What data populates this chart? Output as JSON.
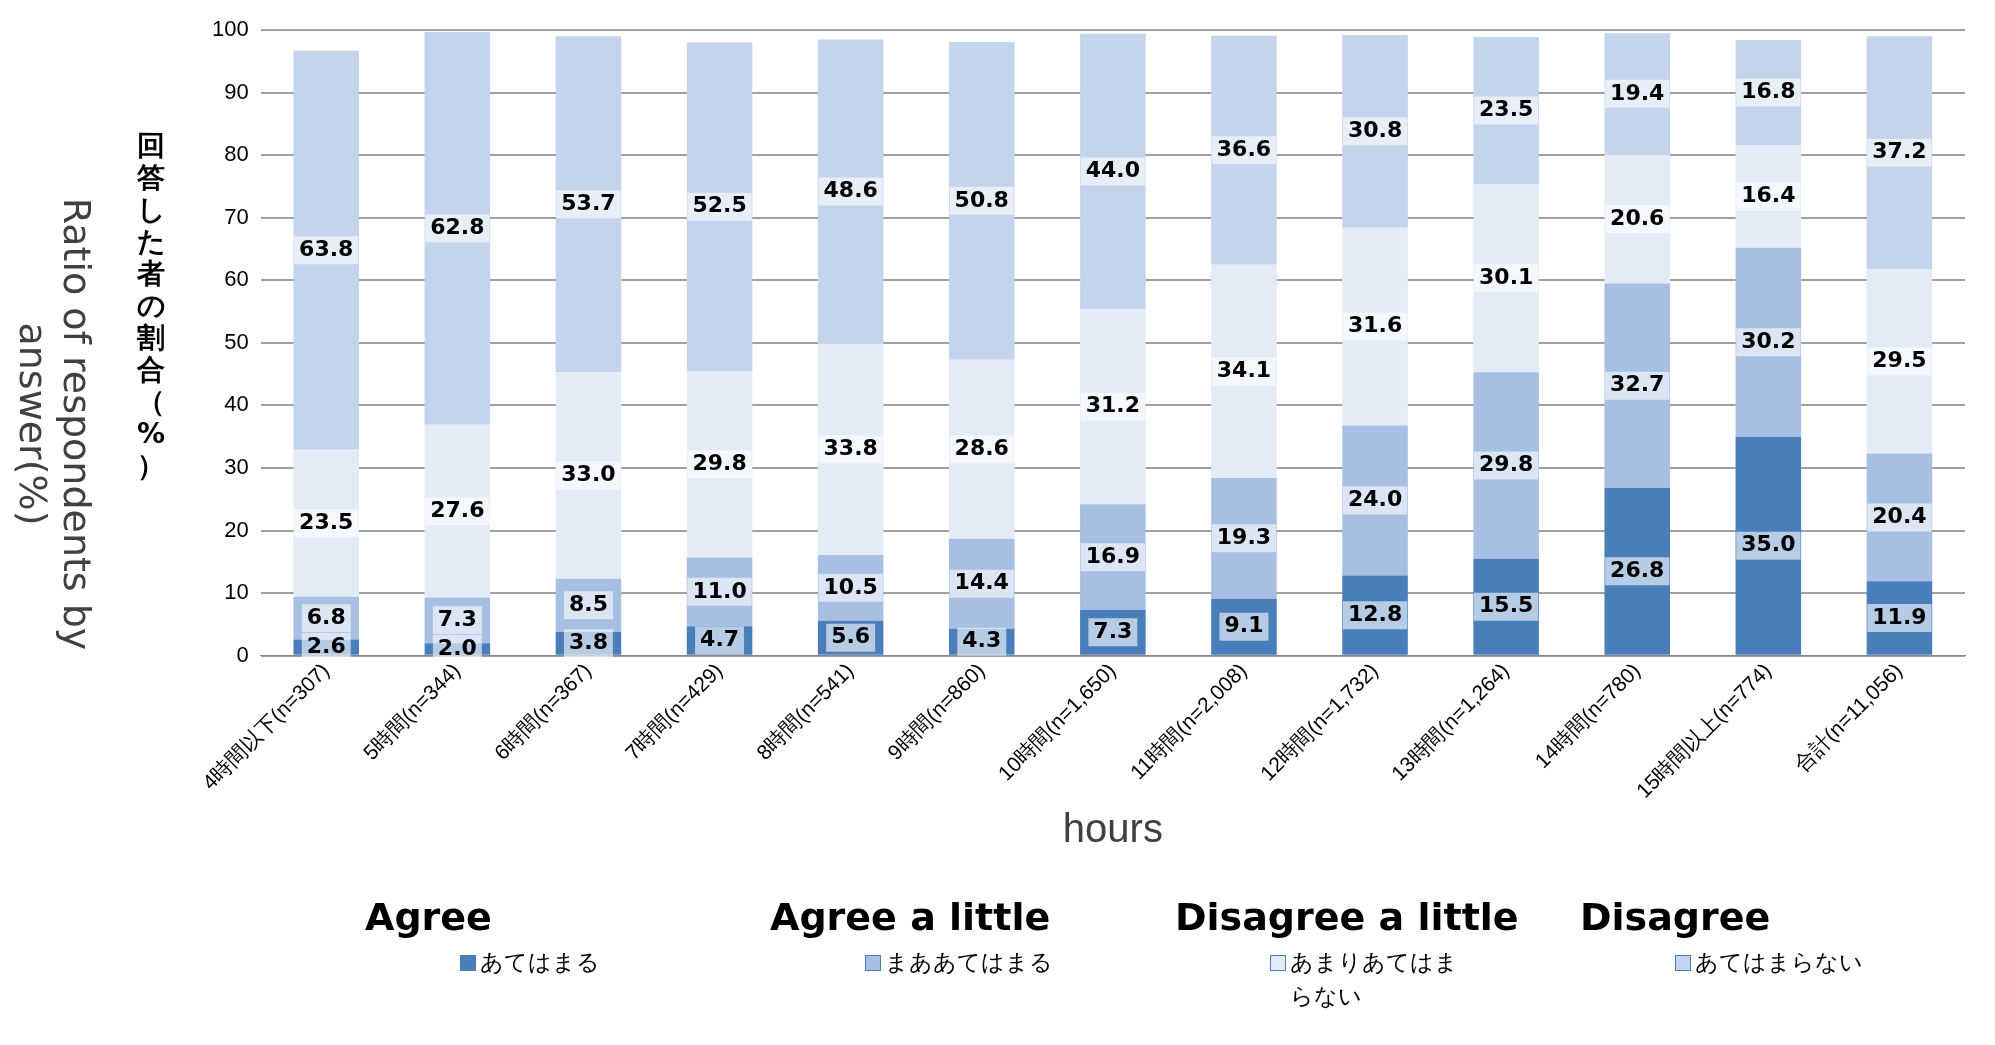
{
  "chart_data": {
    "type": "bar",
    "stacked": true,
    "ylabel": "回答した者の割合（%）",
    "xlabel": "hours",
    "annotations": [
      "Ratio of respondents by answer(%)",
      "Agree",
      "Agree a little",
      "Disagree a little",
      "Disagree"
    ],
    "categories": [
      "4時間以下(n=307)",
      "5時間(n=344)",
      "6時間(n=367)",
      "7時間(n=429)",
      "8時間(n=541)",
      "9時間(n=860)",
      "10時間(n=1,650)",
      "11時間(n=2,008)",
      "12時間(n=1,732)",
      "13時間(n=1,264)",
      "14時間(n=780)",
      "15時間以上(n=774)",
      "合計(n=11,056)"
    ],
    "ylim": [
      0,
      100
    ],
    "yticks": [
      0,
      10,
      20,
      30,
      40,
      50,
      60,
      70,
      80,
      90,
      100
    ],
    "grid": "y",
    "legend": "bottom",
    "series": [
      {
        "name": "あてはまる",
        "color": "#4a7ebb",
        "values": [
          2.6,
          2.0,
          3.8,
          4.7,
          5.6,
          4.3,
          7.3,
          9.1,
          12.8,
          15.5,
          26.8,
          35.0,
          11.9
        ],
        "value_labels": [
          "2.6",
          "2.0",
          "3.8",
          "4.7",
          "5.6",
          "4.3",
          "7.3",
          "9.1",
          "12.8",
          "15.5",
          "26.8",
          "35.0",
          "11.9"
        ]
      },
      {
        "name": "まああてはまる",
        "color": "#a6bfe3",
        "values": [
          6.8,
          7.3,
          8.5,
          11.0,
          10.5,
          14.4,
          16.9,
          19.3,
          24.0,
          29.8,
          32.7,
          30.2,
          20.4
        ],
        "value_labels": [
          "6.8",
          "7.3",
          "8.5",
          "11.0",
          "10.5",
          "14.4",
          "16.9",
          "19.3",
          "24.0",
          "29.8",
          "32.7",
          "30.2",
          "20.4"
        ]
      },
      {
        "name": "あまりあてはまらない",
        "color": "#e3ebf6",
        "values": [
          23.5,
          27.6,
          33.0,
          29.8,
          33.8,
          28.6,
          31.2,
          34.1,
          31.6,
          30.1,
          20.6,
          16.4,
          29.5
        ],
        "value_labels": [
          "23.5",
          "27.6",
          "33.0",
          "29.8",
          "33.8",
          "28.6",
          "31.2",
          "34.1",
          "31.6",
          "30.1",
          "20.6",
          "16.4",
          "29.5"
        ]
      },
      {
        "name": "あてはまらない",
        "color": "#c3d4ec",
        "values": [
          63.8,
          62.8,
          53.7,
          52.5,
          48.6,
          50.8,
          44.0,
          36.6,
          30.8,
          23.5,
          19.4,
          16.8,
          37.2
        ],
        "value_labels": [
          "63.8",
          "62.8",
          "53.7",
          "52.5",
          "48.6",
          "50.8",
          "44.0",
          "36.6",
          "30.8",
          "23.5",
          "19.4",
          "16.8",
          "37.2"
        ]
      }
    ]
  }
}
